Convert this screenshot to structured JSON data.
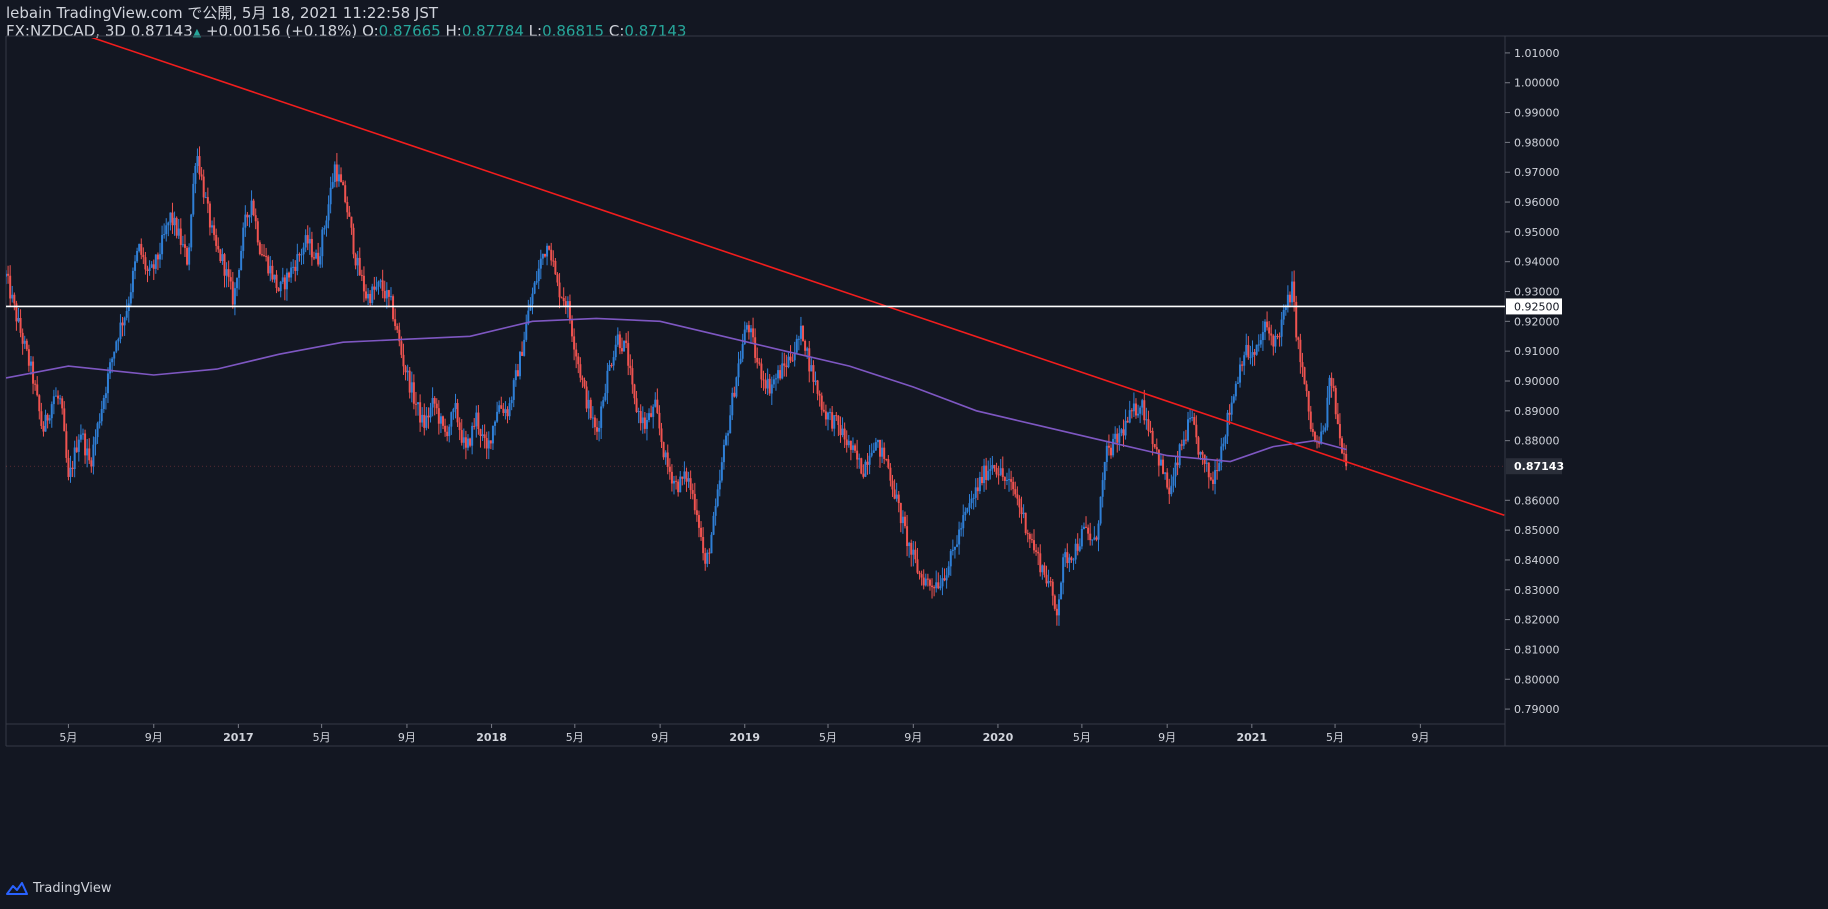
{
  "header": {
    "publisher": "lebain TradingView.com で公開, 5月 18, 2021 11:22:58 JST",
    "symbol": "FX:NZDCAD, 3D",
    "last": "0.87143",
    "change": "+0.00156 (+0.18%)",
    "o_label": "O:",
    "o_value": "0.87665",
    "h_label": "H:",
    "h_value": "0.87784",
    "l_label": "L:",
    "l_value": "0.86815",
    "c_label": "C:",
    "c_value": "0.87143"
  },
  "footer": {
    "brand": "TradingView"
  },
  "colors": {
    "background": "#131722",
    "up": "#2f7fd6",
    "down": "#ef5350",
    "trendline": "#f21d1d",
    "ma": "#7e57c2",
    "horizontal": "#ffffff",
    "text": "#d1d4dc",
    "accent": "#26a69a"
  },
  "chart_data": {
    "type": "candlestick",
    "timeframe": "3D",
    "symbol": "FX:NZDCAD",
    "ylim": [
      0.785,
      1.015
    ],
    "x_range": [
      "2016-02-01",
      "2022-01-01"
    ],
    "y_ticks": [
      "1.01000",
      "1.00000",
      "0.99000",
      "0.98000",
      "0.97000",
      "0.96000",
      "0.95000",
      "0.94000",
      "0.93000",
      "0.92000",
      "0.91000",
      "0.90000",
      "0.89000",
      "0.88000",
      "0.86000",
      "0.85000",
      "0.84000",
      "0.83000",
      "0.82000",
      "0.81000",
      "0.80000",
      "0.79000"
    ],
    "x_ticks": [
      {
        "label": "5月",
        "date": "2016-05-01"
      },
      {
        "label": "9月",
        "date": "2016-09-01"
      },
      {
        "label": "2017",
        "date": "2017-01-01"
      },
      {
        "label": "5月",
        "date": "2017-05-01"
      },
      {
        "label": "9月",
        "date": "2017-09-01"
      },
      {
        "label": "2018",
        "date": "2018-01-01"
      },
      {
        "label": "5月",
        "date": "2018-05-01"
      },
      {
        "label": "9月",
        "date": "2018-09-01"
      },
      {
        "label": "2019",
        "date": "2019-01-01"
      },
      {
        "label": "5月",
        "date": "2019-05-01"
      },
      {
        "label": "9月",
        "date": "2019-09-01"
      },
      {
        "label": "2020",
        "date": "2020-01-01"
      },
      {
        "label": "5月",
        "date": "2020-05-01"
      },
      {
        "label": "9月",
        "date": "2020-09-01"
      },
      {
        "label": "2021",
        "date": "2021-01-01"
      },
      {
        "label": "5月",
        "date": "2021-05-01"
      },
      {
        "label": "9月",
        "date": "2021-09-01"
      }
    ],
    "price_path": [
      [
        "2016-02-01",
        0.935
      ],
      [
        "2016-02-20",
        0.918
      ],
      [
        "2016-03-10",
        0.902
      ],
      [
        "2016-03-25",
        0.883
      ],
      [
        "2016-04-10",
        0.895
      ],
      [
        "2016-04-20",
        0.893
      ],
      [
        "2016-05-01",
        0.866
      ],
      [
        "2016-05-18",
        0.884
      ],
      [
        "2016-06-01",
        0.872
      ],
      [
        "2016-06-20",
        0.894
      ],
      [
        "2016-07-10",
        0.915
      ],
      [
        "2016-07-25",
        0.925
      ],
      [
        "2016-08-10",
        0.945
      ],
      [
        "2016-08-25",
        0.935
      ],
      [
        "2016-09-05",
        0.94
      ],
      [
        "2016-09-25",
        0.955
      ],
      [
        "2016-10-05",
        0.95
      ],
      [
        "2016-10-20",
        0.94
      ],
      [
        "2016-11-01",
        0.978
      ],
      [
        "2016-11-15",
        0.96
      ],
      [
        "2016-11-28",
        0.945
      ],
      [
        "2016-12-10",
        0.94
      ],
      [
        "2016-12-25",
        0.927
      ],
      [
        "2017-01-10",
        0.952
      ],
      [
        "2017-01-20",
        0.961
      ],
      [
        "2017-02-01",
        0.945
      ],
      [
        "2017-02-15",
        0.938
      ],
      [
        "2017-03-01",
        0.93
      ],
      [
        "2017-03-20",
        0.938
      ],
      [
        "2017-04-10",
        0.947
      ],
      [
        "2017-04-25",
        0.94
      ],
      [
        "2017-05-10",
        0.958
      ],
      [
        "2017-05-20",
        0.972
      ],
      [
        "2017-06-05",
        0.96
      ],
      [
        "2017-06-20",
        0.94
      ],
      [
        "2017-07-05",
        0.928
      ],
      [
        "2017-07-25",
        0.932
      ],
      [
        "2017-08-10",
        0.925
      ],
      [
        "2017-08-25",
        0.908
      ],
      [
        "2017-09-10",
        0.895
      ],
      [
        "2017-09-25",
        0.885
      ],
      [
        "2017-10-10",
        0.893
      ],
      [
        "2017-10-25",
        0.882
      ],
      [
        "2017-11-10",
        0.89
      ],
      [
        "2017-11-25",
        0.876
      ],
      [
        "2017-12-10",
        0.888
      ],
      [
        "2017-12-25",
        0.876
      ],
      [
        "2018-01-10",
        0.892
      ],
      [
        "2018-01-25",
        0.89
      ],
      [
        "2018-02-10",
        0.906
      ],
      [
        "2018-02-25",
        0.925
      ],
      [
        "2018-03-15",
        0.942
      ],
      [
        "2018-03-25",
        0.947
      ],
      [
        "2018-04-05",
        0.932
      ],
      [
        "2018-04-20",
        0.926
      ],
      [
        "2018-05-01",
        0.912
      ],
      [
        "2018-05-15",
        0.896
      ],
      [
        "2018-06-01",
        0.882
      ],
      [
        "2018-06-15",
        0.9
      ],
      [
        "2018-07-01",
        0.915
      ],
      [
        "2018-07-15",
        0.91
      ],
      [
        "2018-07-25",
        0.893
      ],
      [
        "2018-08-10",
        0.885
      ],
      [
        "2018-08-25",
        0.891
      ],
      [
        "2018-09-10",
        0.872
      ],
      [
        "2018-09-25",
        0.865
      ],
      [
        "2018-10-10",
        0.868
      ],
      [
        "2018-10-25",
        0.856
      ],
      [
        "2018-11-05",
        0.837
      ],
      [
        "2018-11-20",
        0.856
      ],
      [
        "2018-12-01",
        0.875
      ],
      [
        "2018-12-20",
        0.902
      ],
      [
        "2019-01-05",
        0.92
      ],
      [
        "2019-01-20",
        0.905
      ],
      [
        "2019-02-05",
        0.898
      ],
      [
        "2019-02-25",
        0.904
      ],
      [
        "2019-03-15",
        0.911
      ],
      [
        "2019-03-25",
        0.917
      ],
      [
        "2019-04-05",
        0.905
      ],
      [
        "2019-04-25",
        0.89
      ],
      [
        "2019-05-15",
        0.885
      ],
      [
        "2019-06-01",
        0.878
      ],
      [
        "2019-06-20",
        0.87
      ],
      [
        "2019-07-05",
        0.88
      ],
      [
        "2019-07-25",
        0.873
      ],
      [
        "2019-08-10",
        0.858
      ],
      [
        "2019-08-25",
        0.845
      ],
      [
        "2019-09-10",
        0.835
      ],
      [
        "2019-09-25",
        0.832
      ],
      [
        "2019-10-10",
        0.833
      ],
      [
        "2019-10-25",
        0.84
      ],
      [
        "2019-11-10",
        0.852
      ],
      [
        "2019-11-25",
        0.86
      ],
      [
        "2019-12-10",
        0.868
      ],
      [
        "2019-12-25",
        0.873
      ],
      [
        "2020-01-10",
        0.867
      ],
      [
        "2020-01-25",
        0.863
      ],
      [
        "2020-02-10",
        0.852
      ],
      [
        "2020-02-25",
        0.842
      ],
      [
        "2020-03-15",
        0.832
      ],
      [
        "2020-03-25",
        0.822
      ],
      [
        "2020-04-05",
        0.84
      ],
      [
        "2020-04-20",
        0.843
      ],
      [
        "2020-05-05",
        0.85
      ],
      [
        "2020-05-20",
        0.845
      ],
      [
        "2020-06-05",
        0.875
      ],
      [
        "2020-06-20",
        0.88
      ],
      [
        "2020-07-10",
        0.888
      ],
      [
        "2020-07-25",
        0.893
      ],
      [
        "2020-08-10",
        0.882
      ],
      [
        "2020-08-25",
        0.87
      ],
      [
        "2020-09-05",
        0.862
      ],
      [
        "2020-09-20",
        0.877
      ],
      [
        "2020-10-05",
        0.887
      ],
      [
        "2020-10-20",
        0.874
      ],
      [
        "2020-11-05",
        0.866
      ],
      [
        "2020-11-20",
        0.88
      ],
      [
        "2020-12-05",
        0.895
      ],
      [
        "2020-12-20",
        0.91
      ],
      [
        "2021-01-05",
        0.908
      ],
      [
        "2021-01-20",
        0.918
      ],
      [
        "2021-02-05",
        0.913
      ],
      [
        "2021-02-20",
        0.925
      ],
      [
        "2021-02-28",
        0.931
      ],
      [
        "2021-03-08",
        0.913
      ],
      [
        "2021-03-20",
        0.896
      ],
      [
        "2021-03-28",
        0.883
      ],
      [
        "2021-04-05",
        0.878
      ],
      [
        "2021-04-15",
        0.883
      ],
      [
        "2021-04-25",
        0.902
      ],
      [
        "2021-05-01",
        0.892
      ],
      [
        "2021-05-08",
        0.88
      ],
      [
        "2021-05-12",
        0.878
      ],
      [
        "2021-05-18",
        0.8714
      ]
    ],
    "last_close": 0.87143,
    "series": [
      {
        "name": "",
        "type": "trendline",
        "points": [
          [
            "2016-01-31",
            1.025
          ],
          [
            "2021-12-31",
            0.855
          ]
        ]
      },
      {
        "name": "",
        "type": "horizontal",
        "value": 0.925,
        "label": "0.92500"
      },
      {
        "name": "",
        "type": "ma",
        "points": [
          [
            "2016-02-01",
            0.901
          ],
          [
            "2016-05-01",
            0.905
          ],
          [
            "2016-09-01",
            0.902
          ],
          [
            "2016-12-01",
            0.904
          ],
          [
            "2017-03-01",
            0.909
          ],
          [
            "2017-06-01",
            0.913
          ],
          [
            "2017-09-01",
            0.914
          ],
          [
            "2017-12-01",
            0.915
          ],
          [
            "2018-03-01",
            0.92
          ],
          [
            "2018-06-01",
            0.921
          ],
          [
            "2018-09-01",
            0.92
          ],
          [
            "2018-12-01",
            0.915
          ],
          [
            "2019-03-01",
            0.91
          ],
          [
            "2019-06-01",
            0.905
          ],
          [
            "2019-09-01",
            0.898
          ],
          [
            "2019-12-01",
            0.89
          ],
          [
            "2020-03-01",
            0.885
          ],
          [
            "2020-06-01",
            0.88
          ],
          [
            "2020-09-01",
            0.875
          ],
          [
            "2020-12-01",
            0.873
          ],
          [
            "2021-02-01",
            0.878
          ],
          [
            "2021-04-01",
            0.88
          ],
          [
            "2021-05-18",
            0.877
          ]
        ]
      }
    ]
  }
}
